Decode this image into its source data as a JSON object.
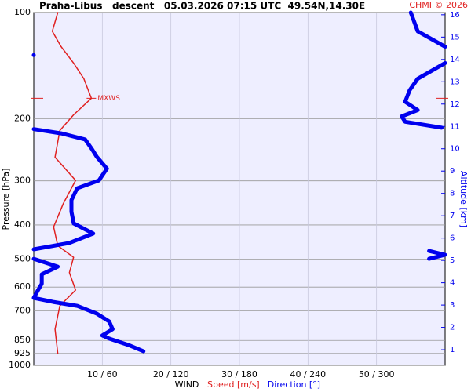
{
  "chart_data": {
    "type": "wind-profile",
    "title": "Praha-Libus   descent   05.03.2026 07:15 UTC  49.54N,14.30E",
    "credit": "CHMI © 2026",
    "x_label": "WIND",
    "y_label": "Pressure [hPa]",
    "y2_label": "Altitude [km]",
    "log_y": true,
    "grid": true,
    "ylim": [
      1000,
      100
    ],
    "yticks": [
      100,
      200,
      300,
      400,
      500,
      600,
      700,
      850,
      925,
      1000
    ],
    "y2lim": [
      0.3,
      16.1
    ],
    "y2ticks": [
      1,
      2,
      3,
      4,
      5,
      6,
      7,
      8,
      9,
      10,
      11,
      12,
      13,
      14,
      15,
      16
    ],
    "xlim": [
      0,
      60
    ],
    "x2lim": [
      0,
      360
    ],
    "xticks": [
      {
        "value": 10,
        "label": "10 / 60"
      },
      {
        "value": 20,
        "label": "20 / 120"
      },
      {
        "value": 30,
        "label": "30 / 180"
      },
      {
        "value": 40,
        "label": "40 / 240"
      },
      {
        "value": 50,
        "label": "50 / 300"
      }
    ],
    "series": [
      {
        "name": "Speed [m/s]",
        "color": "#e02020",
        "axis": "x",
        "pressure": [
          100,
          113,
          125,
          139,
          154,
          175,
          195,
          216,
          257,
          299,
          348,
          405,
          458,
          494,
          546,
          612,
          678,
          790,
          925
        ],
        "values": [
          3.5,
          2.7,
          4.0,
          5.8,
          7.3,
          8.4,
          5.8,
          3.8,
          3.1,
          6.1,
          4.3,
          2.9,
          3.5,
          5.8,
          5.2,
          6.1,
          3.8,
          3.1,
          3.5
        ]
      },
      {
        "name": "Direction [°]",
        "color": "#0000ee",
        "axis": "x2",
        "pressure": [
          100,
          113,
          125,
          null,
          132,
          null,
          139,
          154,
          166,
          179,
          189,
          197,
          204,
          212,
          null,
          214,
          220,
          229,
          244,
          256,
          277,
          299,
          315,
          340,
          367,
          396,
          423,
          450,
          469,
          null,
          474,
          486,
          499,
          null,
          499,
          525,
          552,
          587,
          618,
          644,
          661,
          678,
          713,
          751,
          790,
          823,
          840,
          876,
          912
        ],
        "values": [
          330,
          336,
          360,
          null,
          0,
          null,
          360,
          336,
          329,
          325,
          336,
          322,
          325,
          357,
          null,
          0,
          24,
          45,
          51,
          55,
          64,
          57,
          38,
          33,
          33,
          35,
          52,
          31,
          0,
          null,
          346,
          360,
          346,
          null,
          0,
          21,
          7,
          7,
          3,
          0,
          17,
          38,
          55,
          66,
          69,
          60,
          66,
          83,
          96
        ]
      }
    ],
    "annotations": [
      {
        "text": "MXWS",
        "pressure": 175
      }
    ]
  }
}
